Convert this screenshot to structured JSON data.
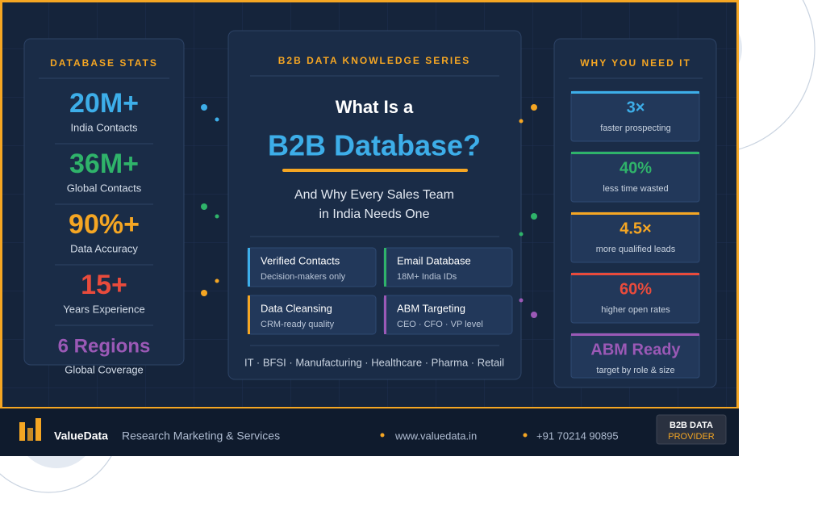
{
  "left_panel": {
    "heading": "DATABASE STATS",
    "stats": [
      {
        "value": "20M+",
        "label": "India Contacts"
      },
      {
        "value": "36M+",
        "label": "Global Contacts"
      },
      {
        "value": "90%+",
        "label": "Data Accuracy"
      },
      {
        "value": "15+",
        "label": "Years Experience"
      },
      {
        "value": "6 Regions",
        "label": "Global Coverage"
      }
    ]
  },
  "center_panel": {
    "kicker": "B2B DATA KNOWLEDGE SERIES",
    "title_line1": "What Is a",
    "title_line2": "B2B Database?",
    "subtitle_lines": [
      "And Why Every Sales Team",
      "in India Needs One"
    ],
    "features": [
      {
        "title": "Verified Contacts",
        "detail": "Decision-makers only"
      },
      {
        "title": "Email Database",
        "detail": "18M+ India IDs"
      },
      {
        "title": "Data Cleansing",
        "detail": "CRM-ready quality"
      },
      {
        "title": "ABM Targeting",
        "detail": "CEO · CFO · VP level"
      }
    ],
    "industries": "IT · BFSI · Manufacturing · Healthcare · Pharma · Retail"
  },
  "right_panel": {
    "heading": "WHY YOU NEED IT",
    "reasons": [
      {
        "value": "3×",
        "label": "faster prospecting"
      },
      {
        "value": "40%",
        "label": "less time wasted"
      },
      {
        "value": "4.5×",
        "label": "more qualified leads"
      },
      {
        "value": "60%",
        "label": "higher open rates"
      },
      {
        "value": "ABM Ready",
        "label": "target by role & size"
      }
    ]
  },
  "footer": {
    "brand": "ValueData",
    "tagline": "Research Marketing & Services",
    "website": "www.valuedata.in",
    "phone": "+91 70214 90895",
    "badge_lines": [
      "B2B DATA",
      "PROVIDER"
    ]
  }
}
